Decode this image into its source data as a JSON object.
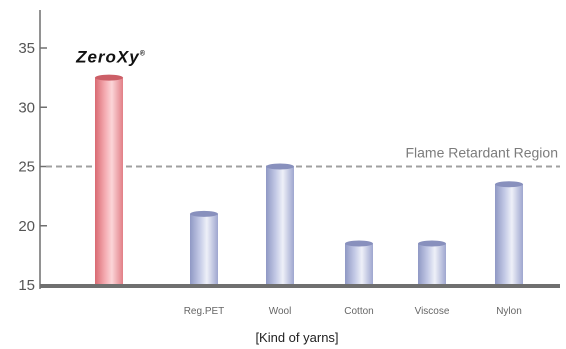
{
  "chart_data": {
    "type": "bar",
    "categories": [
      "ZeroXy",
      "Reg.PET",
      "Wool",
      "Cotton",
      "Viscose",
      "Nylon"
    ],
    "values": [
      32.5,
      21,
      25,
      18.5,
      18.5,
      23.5
    ],
    "highlight_category": "ZeroXy",
    "xlabel": "[Kind of yarns]",
    "ylabel": "",
    "ylim": [
      15,
      37
    ],
    "yticks": [
      15,
      20,
      25,
      30,
      35
    ],
    "reference_line": {
      "value": 25,
      "label": "Flame Retardant Region"
    },
    "brand_label": "ZeroXy",
    "brand_mark": "®",
    "grid": false
  },
  "colors": {
    "highlight_bar": "#e8868c",
    "default_bar": "#a8b0d4",
    "axis": "#6f6f6f",
    "reference_line": "#a0a0a0"
  }
}
